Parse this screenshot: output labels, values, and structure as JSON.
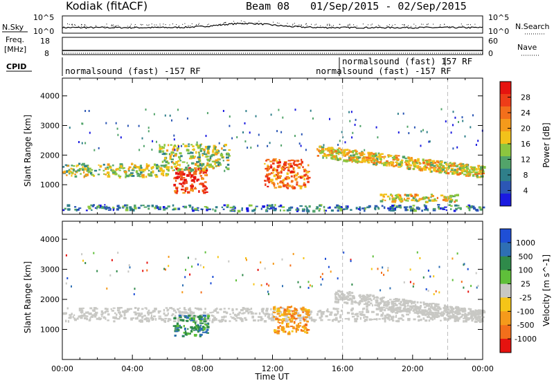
{
  "header": {
    "radar": "Kodiak (fitACF)",
    "beam": "Beam 08",
    "date_range": "01/Sep/2015 - 02/Sep/2015"
  },
  "strip_panels": {
    "noise": {
      "left_label": "N.Sky",
      "right_label": "N.Search",
      "left_ticks": [
        "10^5",
        "10^0"
      ],
      "right_ticks": [
        "10^5",
        "10^0"
      ]
    },
    "freq": {
      "left_label_1": "Freq.",
      "left_label_2": "[MHz]",
      "right_label": "Nave",
      "left_ticks": [
        "18",
        "8"
      ],
      "right_ticks": [
        "60",
        "0"
      ]
    },
    "cpid": {
      "label": "CPID",
      "entries": [
        {
          "start_time": "00:00",
          "text": "normalsound (fast) -157 RF"
        },
        {
          "start_time": "16:00",
          "text": "normalsound (fast) -157 RF"
        },
        {
          "start_time": "16:00",
          "text": "normalsound (fast) 157 RF"
        }
      ]
    }
  },
  "chart_data": [
    {
      "type": "heatmap",
      "title": "",
      "xlabel": "Time UT",
      "ylabel": "Slant Range [km]",
      "x_ticks": [
        "00:00",
        "04:00",
        "08:00",
        "12:00",
        "16:00",
        "20:00",
        "00:00"
      ],
      "x_range_hours": [
        0,
        24
      ],
      "ylim": [
        0,
        4600
      ],
      "y_ticks": [
        1000,
        2000,
        3000,
        4000
      ],
      "colorbar": {
        "label": "Power [dB]",
        "ticks": [
          4,
          8,
          12,
          16,
          20,
          24,
          28
        ],
        "range": [
          0,
          30
        ],
        "colors": [
          "#1a1ae0",
          "#2c57b5",
          "#2f7f8a",
          "#52a46a",
          "#8cc63f",
          "#f2c21a",
          "#f59a1b",
          "#f36f1b",
          "#ee3d18",
          "#e6130f"
        ]
      },
      "scatter_regions": [
        {
          "name": "F-region band",
          "t_start": 0,
          "t_end": 6,
          "range_km": [
            1300,
            1750
          ],
          "power_db": 14
        },
        {
          "name": "enhanced patch",
          "t_start": 6.3,
          "t_end": 8.2,
          "range_km": [
            750,
            1600
          ],
          "power_db": 28
        },
        {
          "name": "mid cloud",
          "t_start": 5.5,
          "t_end": 9.5,
          "range_km": [
            1500,
            2400
          ],
          "power_db": 12
        },
        {
          "name": "ground scatter arc",
          "t_start": 14.5,
          "t_end": 24,
          "range_km": [
            1350,
            2300
          ],
          "power_db": 18
        },
        {
          "name": "post-noon patch",
          "t_start": 11.5,
          "t_end": 14,
          "range_km": [
            900,
            1900
          ],
          "power_db": 24
        },
        {
          "name": "near range",
          "t_start": 0,
          "t_end": 24,
          "range_km": [
            150,
            350
          ],
          "power_db": 8
        },
        {
          "name": "late E-band",
          "t_start": 18,
          "t_end": 22.5,
          "range_km": [
            450,
            700
          ],
          "power_db": 16
        }
      ]
    },
    {
      "type": "heatmap",
      "title": "",
      "xlabel": "Time UT",
      "ylabel": "Slant Range [km]",
      "x_ticks": [
        "00:00",
        "04:00",
        "08:00",
        "12:00",
        "16:00",
        "20:00",
        "00:00"
      ],
      "x_range_hours": [
        0,
        24
      ],
      "ylim": [
        0,
        4600
      ],
      "y_ticks": [
        1000,
        2000,
        3000,
        4000
      ],
      "colorbar": {
        "label": "Velocity [m s^-1]",
        "ticks": [
          "1000",
          "500",
          "100",
          "25",
          "-25",
          "-100",
          "-500",
          "-1000"
        ],
        "colors": [
          "#1f4fd6",
          "#2e6fb4",
          "#2f8a4a",
          "#5fbf3a",
          "#c8c8c4",
          "#f5c518",
          "#f59a1b",
          "#f36f1b",
          "#e6130f"
        ]
      },
      "scatter_regions": [
        {
          "name": "ground scatter band",
          "t_start": 0,
          "t_end": 24,
          "range_km": [
            1300,
            1750
          ],
          "velocity_class": "-25..25"
        },
        {
          "name": "westward flow patch",
          "t_start": 6.3,
          "t_end": 8.3,
          "range_km": [
            800,
            1500
          ],
          "velocity_class": "100..500"
        },
        {
          "name": "eastward flow patch",
          "t_start": 12,
          "t_end": 14,
          "range_km": [
            900,
            1800
          ],
          "velocity_class": "-500..-100"
        },
        {
          "name": "ground scatter arc",
          "t_start": 15.5,
          "t_end": 24,
          "range_km": [
            1350,
            2200
          ],
          "velocity_class": "-25..25"
        }
      ]
    }
  ],
  "colors": {
    "guide_line": "#bbbbbb",
    "axis": "#000000"
  }
}
